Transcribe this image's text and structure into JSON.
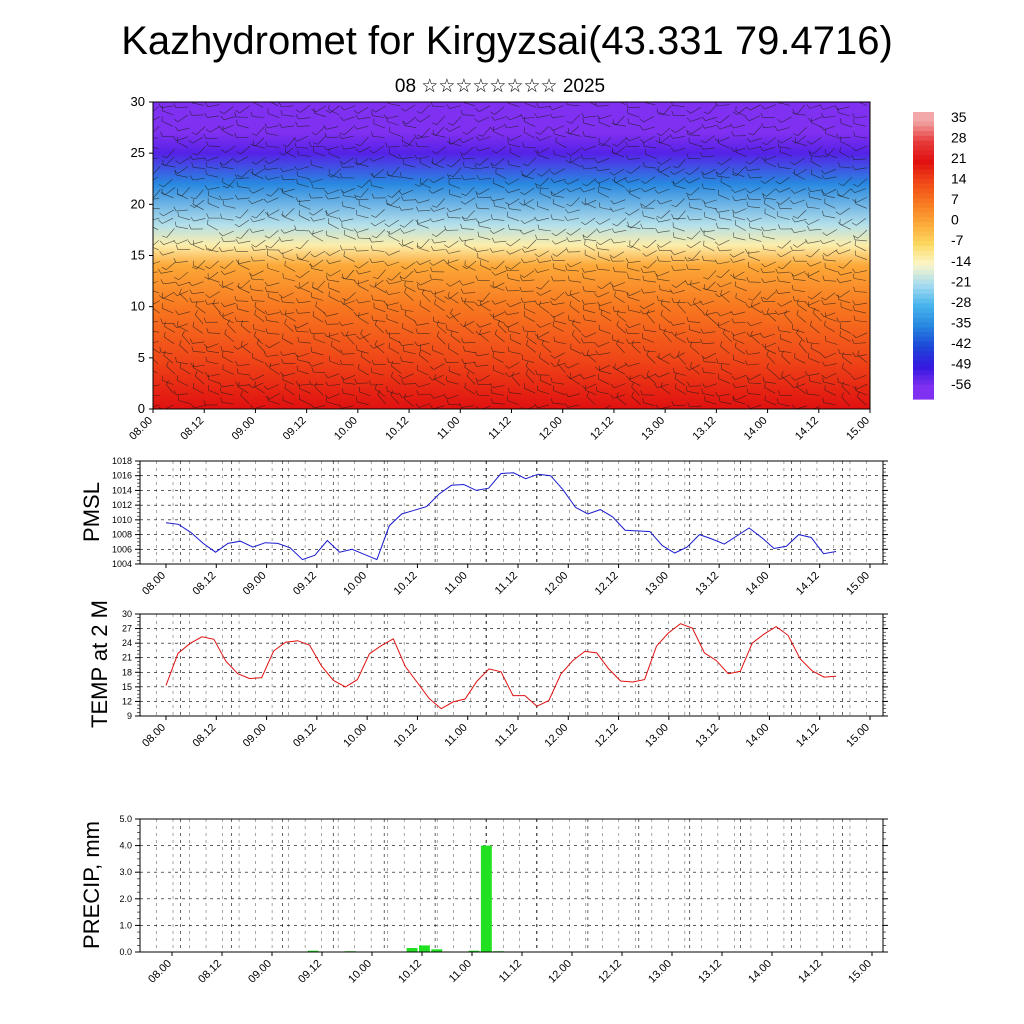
{
  "header": {
    "title": "Kazhydromet for Kirgyzsai(43.331 79.4716)",
    "subtitle": "08 ☆☆☆☆☆☆☆☆ 2025"
  },
  "time_ticks": [
    "08.00",
    "08.12",
    "09.00",
    "09.12",
    "10.00",
    "10.12",
    "11.00",
    "11.12",
    "12.00",
    "12.12",
    "13.00",
    "13.12",
    "14.00",
    "14.12",
    "15.00"
  ],
  "chart_data": [
    {
      "type": "heatmap",
      "title": "",
      "xlabel": "",
      "ylabel": "",
      "ylim": [
        0,
        30
      ],
      "y_ticks": [
        0,
        5,
        10,
        15,
        20,
        25,
        30
      ],
      "x_ticks": [
        "08.00",
        "08.12",
        "09.00",
        "09.12",
        "10.00",
        "10.12",
        "11.00",
        "11.12",
        "12.00",
        "12.12",
        "13.00",
        "13.12",
        "14.00",
        "14.12",
        "15.00"
      ],
      "overlay": "wind barbs",
      "colorbar": {
        "labels": [
          "35",
          "28",
          "21",
          "14",
          "7",
          "0",
          "-7",
          "-14",
          "-21",
          "-28",
          "-35",
          "-42",
          "-49",
          "-56"
        ],
        "colors": [
          "#f2a8a8",
          "#e83c3c",
          "#e01010",
          "#f04818",
          "#f87820",
          "#fca838",
          "#fcd860",
          "#fcf6c8",
          "#a8dcf0",
          "#48b4ec",
          "#2888e0",
          "#1c48d8",
          "#3418e0",
          "#8030f0"
        ]
      },
      "profile": [
        {
          "height": 0,
          "temp": 21
        },
        {
          "height": 5,
          "temp": 14
        },
        {
          "height": 10,
          "temp": 7
        },
        {
          "height": 14,
          "temp": 0
        },
        {
          "height": 16,
          "temp": -12
        },
        {
          "height": 18,
          "temp": -20
        },
        {
          "height": 22,
          "temp": -35
        },
        {
          "height": 25,
          "temp": -52
        },
        {
          "height": 27,
          "temp": -58
        },
        {
          "height": 30,
          "temp": -60
        }
      ]
    },
    {
      "type": "line",
      "ylabel": "PMSL",
      "ylim": [
        1004,
        1018
      ],
      "y_ticks": [
        1004,
        1006,
        1008,
        1010,
        1012,
        1014,
        1016,
        1018
      ],
      "x_ticks": [
        "08.00",
        "08.12",
        "09.00",
        "09.12",
        "10.00",
        "10.12",
        "11.00",
        "11.12",
        "12.00",
        "12.12",
        "13.00",
        "13.12",
        "14.00",
        "14.12",
        "15.00"
      ],
      "color": "#1a1ad0",
      "series": [
        {
          "values": [
            1009.6,
            1009.4,
            1008.3,
            1006.8,
            1005.6,
            1006.8,
            1007.1,
            1006.3,
            1006.9,
            1006.8,
            1006.2,
            1004.6,
            1005.2,
            1007.2,
            1005.6,
            1006.0,
            1005.3,
            1004.6,
            1009.2,
            1010.8,
            1011.3,
            1011.8,
            1013.5,
            1014.7,
            1014.8,
            1014.0,
            1014.3,
            1016.3,
            1016.4,
            1015.6,
            1016.2,
            1016.0,
            1014.1,
            1011.7,
            1010.8,
            1011.4,
            1010.4,
            1008.6,
            1008.5,
            1008.4,
            1006.5,
            1005.5,
            1006.3,
            1008.0,
            1007.4,
            1006.7,
            1007.8,
            1008.9,
            1007.6,
            1006.1,
            1006.4,
            1008.0,
            1007.6,
            1005.4,
            1005.7
          ]
        }
      ]
    },
    {
      "type": "line",
      "ylabel": "TEMP at 2 M",
      "ylim": [
        9,
        30
      ],
      "y_ticks": [
        9,
        12,
        15,
        18,
        21,
        24,
        27,
        30
      ],
      "x_ticks": [
        "08.00",
        "08.12",
        "09.00",
        "09.12",
        "10.00",
        "10.12",
        "11.00",
        "11.12",
        "12.00",
        "12.12",
        "13.00",
        "13.12",
        "14.00",
        "14.12",
        "15.00"
      ],
      "color": "#e01010",
      "series": [
        {
          "values": [
            15.3,
            21.9,
            23.9,
            25.3,
            24.8,
            20.3,
            17.7,
            16.7,
            16.9,
            22.4,
            24.2,
            24.5,
            23.6,
            19.3,
            16.3,
            15.0,
            16.5,
            21.8,
            23.5,
            24.9,
            19.2,
            15.9,
            12.6,
            10.5,
            11.9,
            12.5,
            16.2,
            18.7,
            18.1,
            13.2,
            13.2,
            11.0,
            12.2,
            17.6,
            20.4,
            22.3,
            22.0,
            18.7,
            16.2,
            16.0,
            16.5,
            23.4,
            26.1,
            28.0,
            27.1,
            22.0,
            20.4,
            17.7,
            18.2,
            24.0,
            25.9,
            27.4,
            25.6,
            20.8,
            18.3,
            17.0,
            17.2
          ]
        }
      ]
    },
    {
      "type": "bar",
      "ylabel": "PRECIP, mm",
      "ylim": [
        0,
        5
      ],
      "y_ticks": [
        "0.0",
        "1.0",
        "2.0",
        "3.0",
        "4.0",
        "5.0"
      ],
      "x_ticks": [
        "08.00",
        "08.12",
        "09.00",
        "09.12",
        "10.00",
        "10.12",
        "11.00",
        "11.12",
        "12.00",
        "12.12",
        "13.00",
        "13.12",
        "14.00",
        "14.12",
        "15.00"
      ],
      "color": "#22e022",
      "series": [
        {
          "values": [
            0,
            0,
            0,
            0,
            0,
            0,
            0,
            0,
            0,
            0,
            0,
            0,
            0.05,
            0,
            0,
            0.03,
            0,
            0,
            0,
            0,
            0.15,
            0.25,
            0.1,
            0,
            0,
            0.05,
            4.0,
            0.03,
            0,
            0,
            0,
            0,
            0,
            0,
            0,
            0,
            0,
            0,
            0,
            0,
            0,
            0,
            0,
            0,
            0,
            0,
            0,
            0,
            0,
            0,
            0,
            0,
            0,
            0,
            0,
            0,
            0,
            0
          ]
        }
      ]
    }
  ]
}
